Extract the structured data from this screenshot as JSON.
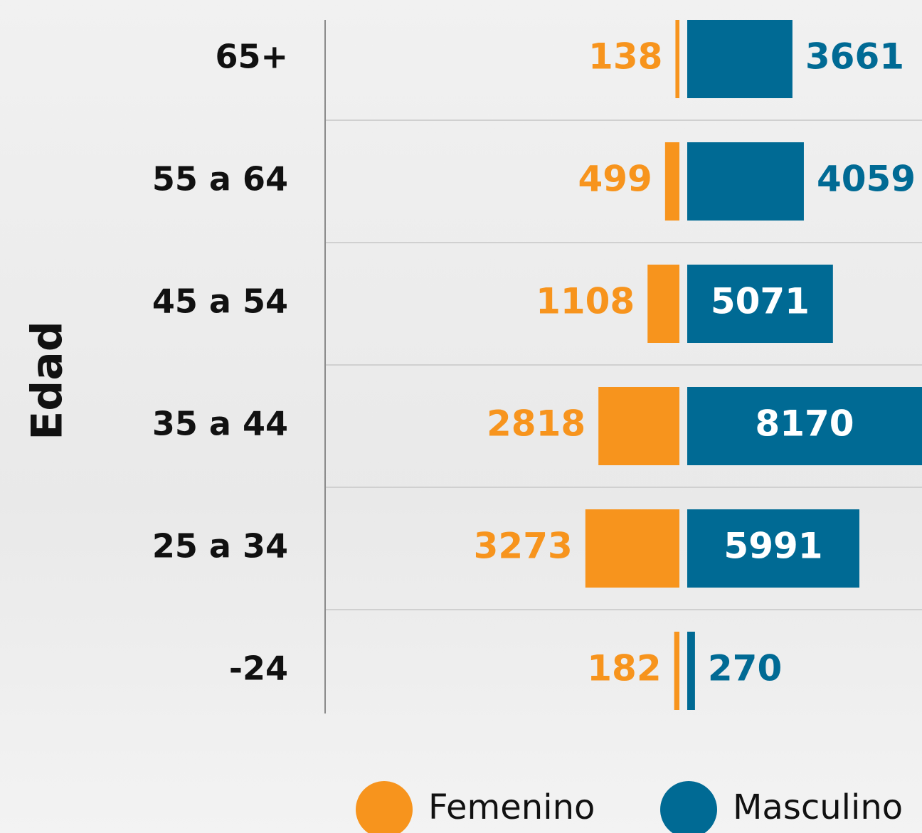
{
  "chart_data": {
    "type": "butterfly_bar",
    "y_label": "Edad",
    "categories": [
      "65+",
      "55 a 64",
      "45 a 54",
      "35 a 44",
      "25 a 34",
      "-24"
    ],
    "series": [
      {
        "name": "Femenino",
        "color": "#f7941d",
        "values": [
          138,
          499,
          1108,
          2818,
          3273,
          182
        ]
      },
      {
        "name": "Masculino",
        "color": "#006a94",
        "values": [
          3661,
          4059,
          5071,
          8170,
          5991,
          270
        ]
      }
    ]
  }
}
